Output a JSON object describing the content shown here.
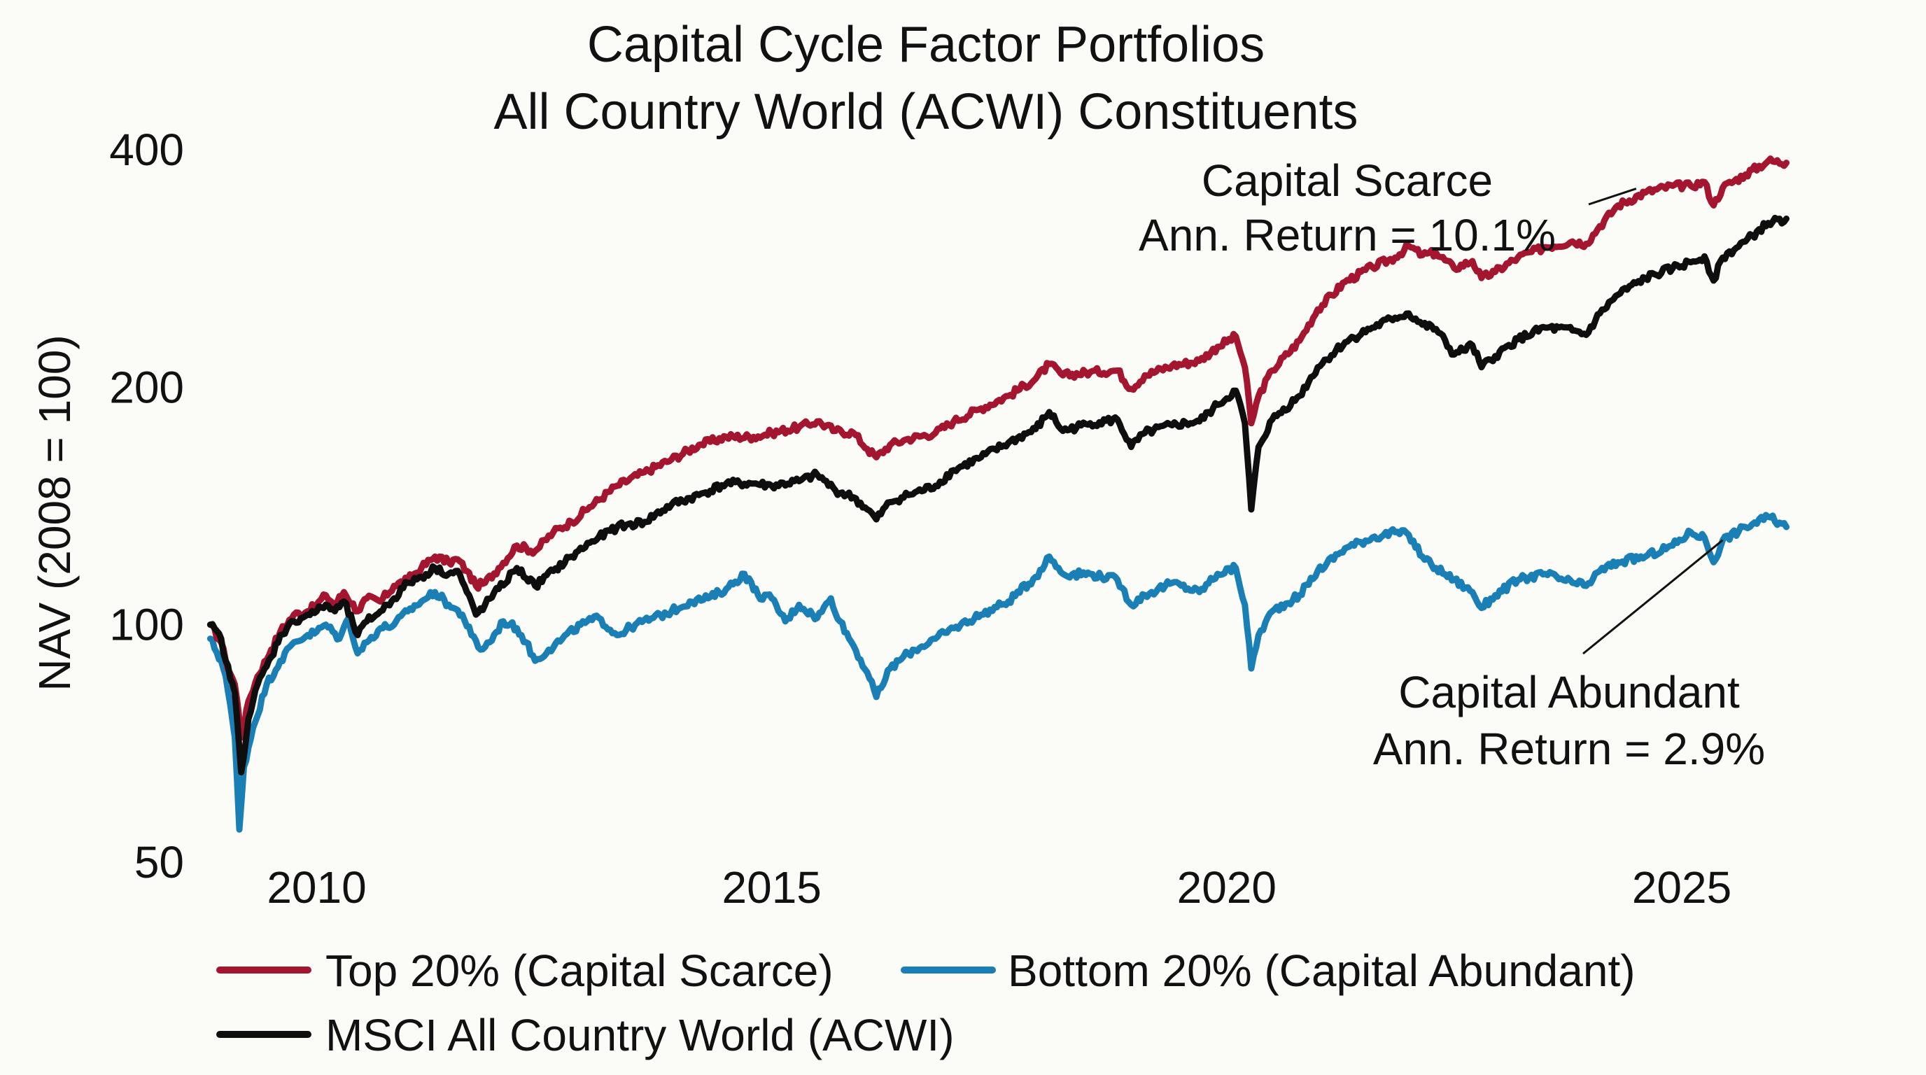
{
  "chart_data": {
    "type": "line",
    "title": "Capital Cycle Factor Portfolios",
    "subtitle": "All Country World (ACWI) Constituents",
    "xlabel": "",
    "ylabel": "NAV (2008 = 100)",
    "y_scale": "log",
    "ylim": [
      50,
      420
    ],
    "xlim": [
      2008.75,
      2026.3
    ],
    "y_ticks": [
      400,
      200,
      100,
      50
    ],
    "x_ticks": [
      2010,
      2015,
      2020,
      2025
    ],
    "y_tick_labels": {
      "400": "400",
      "200": "200",
      "100": "100",
      "50": "50"
    },
    "x_tick_labels": {
      "2010": "2010",
      "2015": "2015",
      "2020": "2020",
      "2025": "2025"
    },
    "grid": false,
    "legend_position": "bottom",
    "series": [
      {
        "key": "scarce",
        "name": "Top 20% (Capital Scarce)",
        "color": "#a4152f",
        "points": [
          [
            2008.83,
            100
          ],
          [
            2008.95,
            95
          ],
          [
            2009.0,
            90
          ],
          [
            2009.1,
            84
          ],
          [
            2009.18,
            72
          ],
          [
            2009.25,
            80
          ],
          [
            2009.35,
            86
          ],
          [
            2009.5,
            93
          ],
          [
            2009.6,
            98
          ],
          [
            2009.75,
            103
          ],
          [
            2009.9,
            104
          ],
          [
            2010.0,
            106
          ],
          [
            2010.1,
            109
          ],
          [
            2010.2,
            106
          ],
          [
            2010.3,
            110
          ],
          [
            2010.45,
            104
          ],
          [
            2010.55,
            108
          ],
          [
            2010.7,
            107
          ],
          [
            2010.85,
            112
          ],
          [
            2011.0,
            114
          ],
          [
            2011.15,
            118
          ],
          [
            2011.3,
            122
          ],
          [
            2011.45,
            120
          ],
          [
            2011.55,
            121
          ],
          [
            2011.65,
            117
          ],
          [
            2011.75,
            112
          ],
          [
            2011.85,
            113
          ],
          [
            2012.0,
            118
          ],
          [
            2012.2,
            126
          ],
          [
            2012.4,
            124
          ],
          [
            2012.6,
            131
          ],
          [
            2012.8,
            135
          ],
          [
            2013.0,
            141
          ],
          [
            2013.3,
            150
          ],
          [
            2013.6,
            156
          ],
          [
            2013.9,
            162
          ],
          [
            2014.2,
            169
          ],
          [
            2014.5,
            173
          ],
          [
            2014.8,
            173
          ],
          [
            2015.0,
            175
          ],
          [
            2015.3,
            178
          ],
          [
            2015.5,
            181
          ],
          [
            2015.7,
            176
          ],
          [
            2015.9,
            175
          ],
          [
            2016.05,
            167
          ],
          [
            2016.15,
            163
          ],
          [
            2016.3,
            169
          ],
          [
            2016.5,
            172
          ],
          [
            2016.8,
            175
          ],
          [
            2017.0,
            181
          ],
          [
            2017.3,
            188
          ],
          [
            2017.6,
            195
          ],
          [
            2017.9,
            205
          ],
          [
            2018.05,
            214
          ],
          [
            2018.2,
            207
          ],
          [
            2018.5,
            209
          ],
          [
            2018.8,
            210
          ],
          [
            2018.95,
            199
          ],
          [
            2019.1,
            207
          ],
          [
            2019.4,
            213
          ],
          [
            2019.7,
            216
          ],
          [
            2019.9,
            225
          ],
          [
            2020.1,
            232
          ],
          [
            2020.2,
            212
          ],
          [
            2020.27,
            180
          ],
          [
            2020.35,
            195
          ],
          [
            2020.5,
            210
          ],
          [
            2020.8,
            229
          ],
          [
            2021.0,
            251
          ],
          [
            2021.3,
            272
          ],
          [
            2021.6,
            284
          ],
          [
            2021.85,
            292
          ],
          [
            2022.0,
            302
          ],
          [
            2022.15,
            294
          ],
          [
            2022.3,
            296
          ],
          [
            2022.5,
            283
          ],
          [
            2022.7,
            289
          ],
          [
            2022.8,
            275
          ],
          [
            2022.95,
            280
          ],
          [
            2023.2,
            292
          ],
          [
            2023.5,
            301
          ],
          [
            2023.8,
            306
          ],
          [
            2023.95,
            304
          ],
          [
            2024.1,
            320
          ],
          [
            2024.3,
            340
          ],
          [
            2024.6,
            353
          ],
          [
            2024.9,
            360
          ],
          [
            2025.1,
            360
          ],
          [
            2025.25,
            364
          ],
          [
            2025.35,
            340
          ],
          [
            2025.45,
            358
          ],
          [
            2025.7,
            372
          ],
          [
            2025.95,
            387
          ],
          [
            2026.15,
            385
          ]
        ]
      },
      {
        "key": "abundant",
        "name": "Bottom 20% (Capital Abundant)",
        "color": "#1a7fb4",
        "points": [
          [
            2008.83,
            96
          ],
          [
            2008.95,
            90
          ],
          [
            2009.0,
            86
          ],
          [
            2009.1,
            72
          ],
          [
            2009.15,
            55
          ],
          [
            2009.2,
            66
          ],
          [
            2009.3,
            74
          ],
          [
            2009.45,
            84
          ],
          [
            2009.6,
            90
          ],
          [
            2009.75,
            95
          ],
          [
            2009.9,
            97
          ],
          [
            2010.0,
            98
          ],
          [
            2010.1,
            100
          ],
          [
            2010.25,
            96
          ],
          [
            2010.35,
            102
          ],
          [
            2010.45,
            92
          ],
          [
            2010.55,
            95
          ],
          [
            2010.7,
            99
          ],
          [
            2010.85,
            100
          ],
          [
            2011.0,
            104
          ],
          [
            2011.15,
            107
          ],
          [
            2011.3,
            110
          ],
          [
            2011.45,
            106
          ],
          [
            2011.6,
            103
          ],
          [
            2011.7,
            97
          ],
          [
            2011.8,
            93
          ],
          [
            2011.9,
            95
          ],
          [
            2012.05,
            101
          ],
          [
            2012.2,
            99
          ],
          [
            2012.3,
            95
          ],
          [
            2012.4,
            90
          ],
          [
            2012.55,
            93
          ],
          [
            2012.7,
            96
          ],
          [
            2012.9,
            100
          ],
          [
            2013.1,
            102
          ],
          [
            2013.3,
            97
          ],
          [
            2013.5,
            100
          ],
          [
            2013.7,
            102
          ],
          [
            2013.9,
            104
          ],
          [
            2014.1,
            107
          ],
          [
            2014.3,
            108
          ],
          [
            2014.5,
            111
          ],
          [
            2014.7,
            116
          ],
          [
            2014.85,
            109
          ],
          [
            2015.0,
            108
          ],
          [
            2015.15,
            101
          ],
          [
            2015.3,
            106
          ],
          [
            2015.5,
            102
          ],
          [
            2015.65,
            108
          ],
          [
            2015.75,
            101
          ],
          [
            2015.9,
            94
          ],
          [
            2016.05,
            87
          ],
          [
            2016.15,
            81
          ],
          [
            2016.3,
            88
          ],
          [
            2016.5,
            92
          ],
          [
            2016.8,
            96
          ],
          [
            2017.0,
            99
          ],
          [
            2017.3,
            103
          ],
          [
            2017.6,
            107
          ],
          [
            2017.9,
            115
          ],
          [
            2018.05,
            122
          ],
          [
            2018.2,
            116
          ],
          [
            2018.5,
            116
          ],
          [
            2018.8,
            114
          ],
          [
            2018.95,
            106
          ],
          [
            2019.1,
            109
          ],
          [
            2019.4,
            113
          ],
          [
            2019.7,
            110
          ],
          [
            2019.9,
            116
          ],
          [
            2020.1,
            118
          ],
          [
            2020.2,
            106
          ],
          [
            2020.27,
            88
          ],
          [
            2020.35,
            97
          ],
          [
            2020.5,
            104
          ],
          [
            2020.8,
            109
          ],
          [
            2021.0,
            117
          ],
          [
            2021.3,
            125
          ],
          [
            2021.6,
            129
          ],
          [
            2021.85,
            131
          ],
          [
            2022.0,
            130
          ],
          [
            2022.15,
            122
          ],
          [
            2022.3,
            118
          ],
          [
            2022.5,
            114
          ],
          [
            2022.7,
            110
          ],
          [
            2022.8,
            105
          ],
          [
            2022.95,
            109
          ],
          [
            2023.2,
            114
          ],
          [
            2023.5,
            116
          ],
          [
            2023.8,
            113
          ],
          [
            2023.95,
            112
          ],
          [
            2024.1,
            117
          ],
          [
            2024.3,
            120
          ],
          [
            2024.6,
            122
          ],
          [
            2024.9,
            126
          ],
          [
            2025.1,
            131
          ],
          [
            2025.25,
            129
          ],
          [
            2025.35,
            120
          ],
          [
            2025.45,
            128
          ],
          [
            2025.7,
            133
          ],
          [
            2025.95,
            137
          ],
          [
            2026.15,
            133
          ]
        ]
      },
      {
        "key": "acwi",
        "name": "MSCI All Country World (ACWI)",
        "color": "#0e0e0e",
        "points": [
          [
            2008.83,
            100
          ],
          [
            2008.95,
            96
          ],
          [
            2009.0,
            90
          ],
          [
            2009.1,
            82
          ],
          [
            2009.17,
            65
          ],
          [
            2009.25,
            76
          ],
          [
            2009.35,
            84
          ],
          [
            2009.5,
            91
          ],
          [
            2009.6,
            97
          ],
          [
            2009.75,
            101
          ],
          [
            2009.9,
            103
          ],
          [
            2010.0,
            104
          ],
          [
            2010.1,
            106
          ],
          [
            2010.2,
            104
          ],
          [
            2010.3,
            107
          ],
          [
            2010.45,
            97
          ],
          [
            2010.55,
            101
          ],
          [
            2010.7,
            104
          ],
          [
            2010.85,
            108
          ],
          [
            2011.0,
            113
          ],
          [
            2011.15,
            115
          ],
          [
            2011.3,
            118
          ],
          [
            2011.45,
            116
          ],
          [
            2011.55,
            117
          ],
          [
            2011.65,
            110
          ],
          [
            2011.75,
            103
          ],
          [
            2011.85,
            106
          ],
          [
            2012.0,
            111
          ],
          [
            2012.2,
            118
          ],
          [
            2012.4,
            112
          ],
          [
            2012.6,
            117
          ],
          [
            2012.8,
            122
          ],
          [
            2013.0,
            127
          ],
          [
            2013.3,
            133
          ],
          [
            2013.6,
            135
          ],
          [
            2013.9,
            142
          ],
          [
            2014.2,
            146
          ],
          [
            2014.5,
            151
          ],
          [
            2014.8,
            151
          ],
          [
            2015.0,
            150
          ],
          [
            2015.3,
            152
          ],
          [
            2015.5,
            155
          ],
          [
            2015.7,
            148
          ],
          [
            2015.9,
            145
          ],
          [
            2016.05,
            140
          ],
          [
            2016.15,
            136
          ],
          [
            2016.3,
            143
          ],
          [
            2016.5,
            146
          ],
          [
            2016.8,
            150
          ],
          [
            2017.0,
            157
          ],
          [
            2017.3,
            163
          ],
          [
            2017.6,
            170
          ],
          [
            2017.9,
            177
          ],
          [
            2018.05,
            186
          ],
          [
            2018.2,
            176
          ],
          [
            2018.5,
            180
          ],
          [
            2018.8,
            182
          ],
          [
            2018.95,
            168
          ],
          [
            2019.1,
            175
          ],
          [
            2019.4,
            179
          ],
          [
            2019.7,
            181
          ],
          [
            2019.9,
            190
          ],
          [
            2020.1,
            198
          ],
          [
            2020.2,
            180
          ],
          [
            2020.27,
            140
          ],
          [
            2020.35,
            168
          ],
          [
            2020.5,
            182
          ],
          [
            2020.8,
            195
          ],
          [
            2021.0,
            212
          ],
          [
            2021.3,
            228
          ],
          [
            2021.6,
            238
          ],
          [
            2021.85,
            245
          ],
          [
            2022.0,
            248
          ],
          [
            2022.15,
            240
          ],
          [
            2022.3,
            237
          ],
          [
            2022.5,
            220
          ],
          [
            2022.7,
            226
          ],
          [
            2022.8,
            212
          ],
          [
            2022.95,
            219
          ],
          [
            2023.2,
            230
          ],
          [
            2023.5,
            238
          ],
          [
            2023.8,
            236
          ],
          [
            2023.95,
            233
          ],
          [
            2024.1,
            248
          ],
          [
            2024.3,
            262
          ],
          [
            2024.6,
            275
          ],
          [
            2024.9,
            283
          ],
          [
            2025.1,
            288
          ],
          [
            2025.25,
            293
          ],
          [
            2025.35,
            273
          ],
          [
            2025.45,
            292
          ],
          [
            2025.7,
            306
          ],
          [
            2025.95,
            323
          ],
          [
            2026.15,
            327
          ]
        ]
      }
    ],
    "annotations": [
      {
        "target": "scarce",
        "lines": [
          "Capital Scarce",
          "Ann. Return = 10.1%"
        ],
        "anchor": [
          2024.5,
          357
        ]
      },
      {
        "target": "abundant",
        "lines": [
          "Capital Abundant",
          "Ann. Return = 2.9%"
        ],
        "anchor": [
          2025.45,
          128
        ]
      }
    ]
  }
}
